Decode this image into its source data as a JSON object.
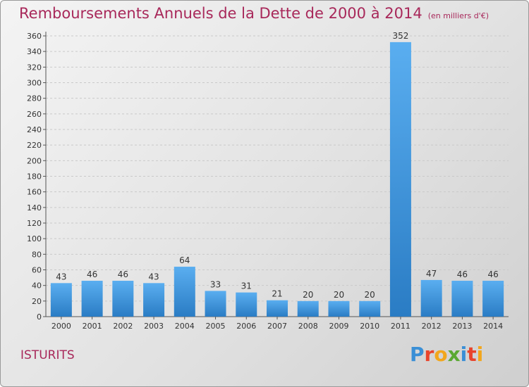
{
  "header": {
    "title": "Remboursements Annuels de la Dette de 2000 à 2014",
    "unit": "(en milliers d'€)"
  },
  "commune": "ISTURITS",
  "logo": {
    "text": "Proxiti",
    "letters": [
      {
        "ch": "P",
        "color": "#3a8fd6"
      },
      {
        "ch": "r",
        "color": "#e8442c"
      },
      {
        "ch": "o",
        "color": "#f2a61c"
      },
      {
        "ch": "x",
        "color": "#5aa832"
      },
      {
        "ch": "i",
        "color": "#3a8fd6"
      },
      {
        "ch": "t",
        "color": "#e8442c"
      },
      {
        "ch": "i",
        "color": "#f2a61c"
      }
    ]
  },
  "colors": {
    "bar_top": "#5aaef0",
    "bar_bottom": "#2a7cc4",
    "title": "#a8285a",
    "grid": "#c9c9c9"
  },
  "chart_data": {
    "type": "bar",
    "title": "Remboursements Annuels de la Dette de 2000 à 2014",
    "subtitle": "(en milliers d'€)",
    "xlabel": "",
    "ylabel": "",
    "categories": [
      "2000",
      "2001",
      "2002",
      "2003",
      "2004",
      "2005",
      "2006",
      "2007",
      "2008",
      "2009",
      "2010",
      "2011",
      "2012",
      "2013",
      "2014"
    ],
    "values": [
      43,
      46,
      46,
      43,
      64,
      33,
      31,
      21,
      20,
      20,
      20,
      352,
      47,
      46,
      46
    ],
    "ylim": [
      0,
      360
    ],
    "ytick_step": 20,
    "grid": true,
    "data_labels": true
  }
}
